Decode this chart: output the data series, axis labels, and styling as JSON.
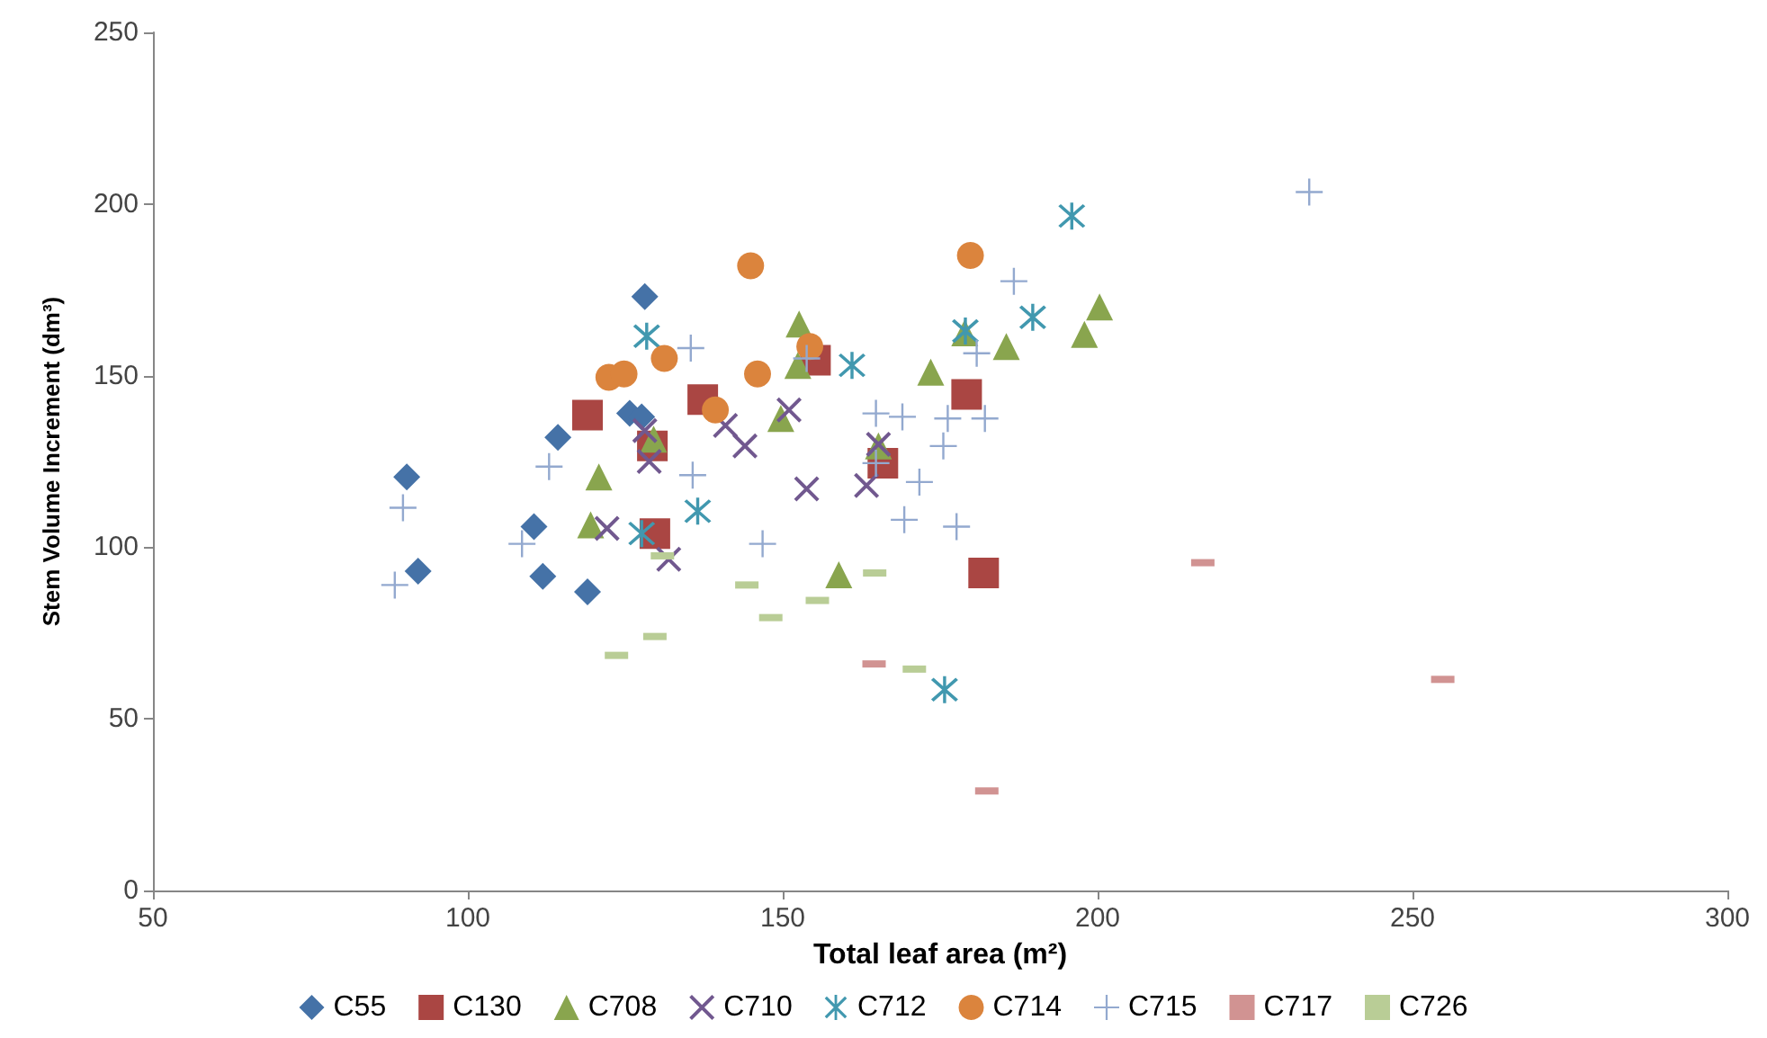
{
  "chart_data": {
    "type": "scatter",
    "xlabel": "Total leaf area (m²)",
    "ylabel": "Stem Volume Increment (dm³)",
    "xlim": [
      50,
      300
    ],
    "xticks": [
      50,
      100,
      150,
      200,
      250,
      300
    ],
    "ylim": [
      0,
      250
    ],
    "yticks": [
      0,
      50,
      100,
      150,
      200,
      250
    ],
    "grid": false,
    "legend": "bottom",
    "series": [
      {
        "name": "C55",
        "color": "#4572a7",
        "marker": "diamond",
        "x": [
          90.3,
          92.1,
          110.5,
          111.9,
          114.3,
          119,
          125.7,
          127.6,
          128.1
        ],
        "values": [
          120.5,
          93,
          106,
          91.5,
          132,
          87,
          139,
          138,
          173
        ]
      },
      {
        "name": "C130",
        "color": "#aa4643",
        "marker": "square",
        "x": [
          119,
          129.3,
          129.7,
          137.3,
          155.2,
          165.9,
          179.2,
          181.9
        ],
        "values": [
          138.5,
          129.5,
          104,
          143,
          154.5,
          124.5,
          144.5,
          92.5
        ]
      },
      {
        "name": "C708",
        "color": "#89a54e",
        "marker": "triangle",
        "x": [
          120.8,
          119.5,
          129.5,
          152.6,
          152.4,
          149.7,
          158.9,
          173.5,
          178.9,
          185.5,
          165.2,
          197.9,
          200.3
        ],
        "values": [
          120.5,
          106.5,
          131.5,
          165,
          153,
          137.5,
          92,
          151,
          162.5,
          158.5,
          129.5,
          162,
          170
        ]
      },
      {
        "name": "C710",
        "color": "#71588f",
        "marker": "x",
        "x": [
          128.1,
          128.8,
          122.1,
          131.9,
          140.9,
          144,
          151,
          153.8,
          163.3,
          165.2
        ],
        "values": [
          134,
          125,
          105.5,
          96.5,
          135.5,
          129.5,
          140,
          117,
          118,
          130
        ]
      },
      {
        "name": "C712",
        "color": "#4198af",
        "marker": "cross",
        "x": [
          128.4,
          127.6,
          136.5,
          161,
          179,
          189.7,
          195.9,
          175.7
        ],
        "values": [
          161.5,
          104,
          110.5,
          153,
          163,
          167,
          196.5,
          58.5
        ]
      },
      {
        "name": "C714",
        "color": "#db843d",
        "marker": "circle",
        "x": [
          122.4,
          124.8,
          131.2,
          144.9,
          146,
          139.3,
          154.3,
          179.8
        ],
        "values": [
          149.5,
          150.5,
          155,
          182,
          150.5,
          140,
          158.5,
          185
        ]
      },
      {
        "name": "C715",
        "color": "#93a9cf",
        "marker": "plus",
        "x": [
          135.4,
          112.9,
          89.7,
          108.6,
          88.4,
          135.7,
          146.8,
          153.8,
          180.8,
          186.7,
          164.8,
          169,
          176.2,
          182.1,
          175.5,
          171.7,
          164.8,
          169.3,
          177.6,
          233.6
        ],
        "values": [
          158,
          123.5,
          111.5,
          101,
          89,
          121,
          101,
          155,
          156.5,
          177.5,
          139,
          138,
          137.5,
          137.5,
          129.5,
          119,
          124.5,
          108,
          106,
          203.5
        ]
      },
      {
        "name": "C717",
        "color": "#d19392",
        "x": [
          216.7,
          254.8,
          164.5,
          182.4
        ],
        "values": [
          95.5,
          61.5,
          66,
          29
        ]
      },
      {
        "name": "C726",
        "color": "#b9cd96",
        "x": [
          130.9,
          123.6,
          129.7,
          144.3,
          148.1,
          155.5,
          164.6,
          170.9
        ],
        "values": [
          97.5,
          68.5,
          74,
          89,
          79.5,
          84.5,
          92.5,
          64.5
        ]
      }
    ]
  }
}
